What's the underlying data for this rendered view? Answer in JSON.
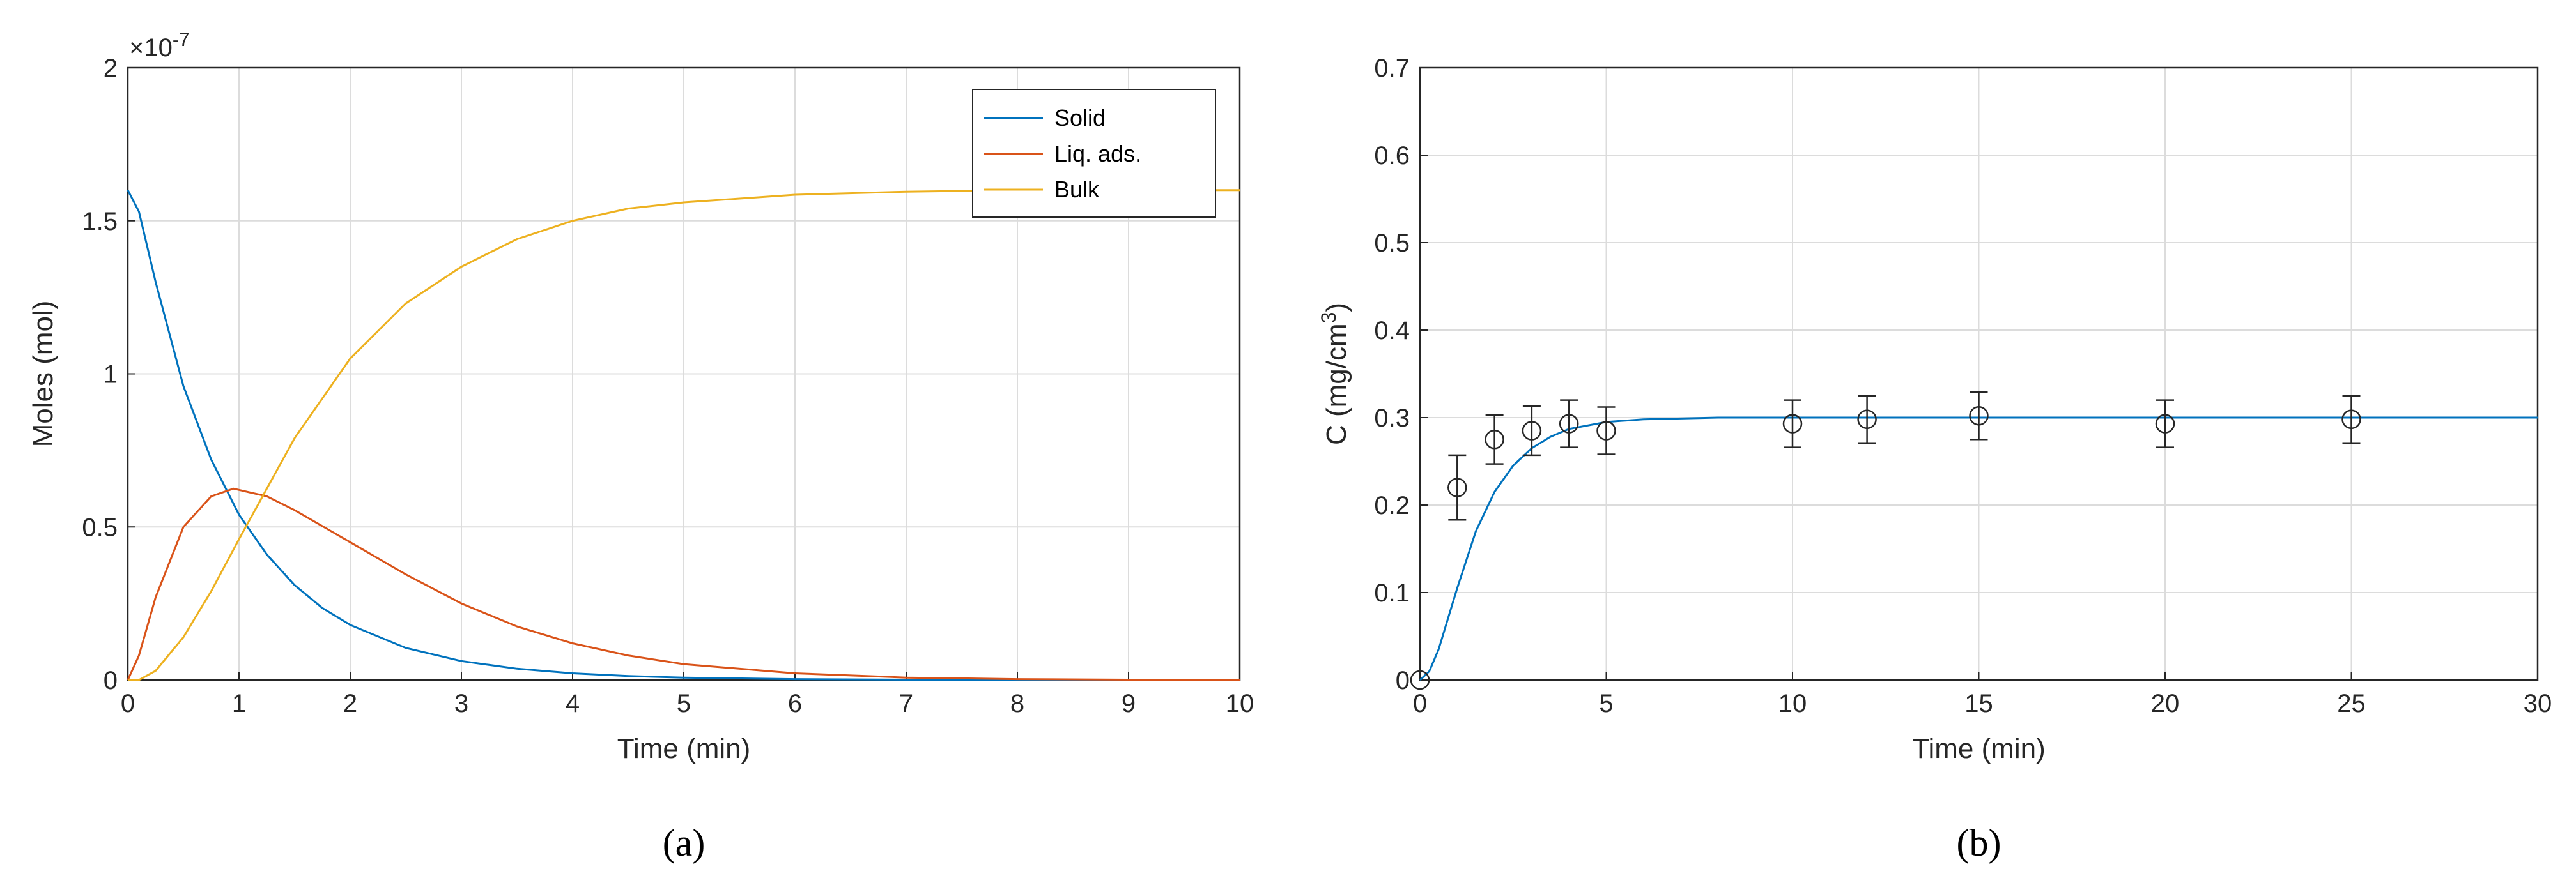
{
  "chart_data": [
    {
      "panel_label": "(a)",
      "panel_letter": "a",
      "type": "line",
      "xlabel": "Time (min)",
      "ylabel": "Moles (mol)",
      "y_exponent": "×10",
      "y_exponent_power": "-7",
      "xlim": [
        0,
        10
      ],
      "ylim": [
        0,
        2
      ],
      "xticks": [
        "0",
        "1",
        "2",
        "3",
        "4",
        "5",
        "6",
        "7",
        "8",
        "9",
        "10"
      ],
      "yticks": [
        "0",
        "0.5",
        "1",
        "1.5",
        "2"
      ],
      "grid": true,
      "legend_position": "top-right",
      "series": [
        {
          "name": "Solid",
          "color": "#0072BD",
          "x": [
            0,
            0.1,
            0.25,
            0.5,
            0.75,
            1,
            1.25,
            1.5,
            1.75,
            2,
            2.5,
            3,
            3.5,
            4,
            4.5,
            5,
            6,
            7,
            8,
            9,
            10
          ],
          "y": [
            1.6,
            1.53,
            1.3,
            0.96,
            0.72,
            0.54,
            0.41,
            0.31,
            0.235,
            0.18,
            0.105,
            0.062,
            0.037,
            0.022,
            0.013,
            0.008,
            0.003,
            0.001,
            0,
            0,
            0
          ]
        },
        {
          "name": "Liq. ads.",
          "color": "#D95319",
          "x": [
            0,
            0.1,
            0.25,
            0.5,
            0.75,
            0.95,
            1.25,
            1.5,
            2,
            2.5,
            3,
            3.5,
            4,
            4.5,
            5,
            6,
            7,
            8,
            9,
            10
          ],
          "y": [
            0,
            0.08,
            0.27,
            0.5,
            0.6,
            0.625,
            0.6,
            0.555,
            0.45,
            0.345,
            0.25,
            0.175,
            0.12,
            0.08,
            0.052,
            0.022,
            0.008,
            0.003,
            0.001,
            0
          ]
        },
        {
          "name": "Bulk",
          "color": "#EDB120",
          "x": [
            0,
            0.1,
            0.25,
            0.5,
            0.75,
            1,
            1.5,
            2,
            2.5,
            3,
            3.5,
            4,
            4.5,
            5,
            6,
            7,
            8,
            9,
            10
          ],
          "y": [
            0,
            0,
            0.03,
            0.14,
            0.29,
            0.46,
            0.79,
            1.05,
            1.23,
            1.35,
            1.44,
            1.5,
            1.54,
            1.56,
            1.585,
            1.595,
            1.6,
            1.6,
            1.6
          ]
        }
      ]
    },
    {
      "panel_label": "(b)",
      "panel_letter": "b",
      "type": "scatter",
      "xlabel": "Time (min)",
      "ylabel": "C (mg/cm",
      "ylabel_sup": "3",
      "ylabel_end": ")",
      "xlim": [
        0,
        30
      ],
      "ylim": [
        0,
        0.7
      ],
      "xticks": [
        "0",
        "5",
        "10",
        "15",
        "20",
        "25",
        "30"
      ],
      "yticks": [
        "0",
        "0.1",
        "0.2",
        "0.3",
        "0.4",
        "0.5",
        "0.6",
        "0.7"
      ],
      "grid": true,
      "model_curve": {
        "color": "#0072BD",
        "x": [
          0,
          0.25,
          0.5,
          0.75,
          1,
          1.5,
          2,
          2.5,
          3,
          3.5,
          4,
          5,
          6,
          7,
          8,
          10,
          15,
          20,
          25,
          30
        ],
        "y": [
          0,
          0.01,
          0.035,
          0.07,
          0.105,
          0.17,
          0.215,
          0.245,
          0.265,
          0.278,
          0.287,
          0.295,
          0.298,
          0.299,
          0.3,
          0.3,
          0.3,
          0.3,
          0.3,
          0.3
        ]
      },
      "measurements": {
        "color": "#262626",
        "x": [
          0,
          1,
          2,
          3,
          4,
          5,
          10,
          12,
          15,
          20,
          25
        ],
        "y": [
          0,
          0.22,
          0.275,
          0.285,
          0.293,
          0.285,
          0.293,
          0.298,
          0.302,
          0.293,
          0.298
        ],
        "error": [
          0,
          0.037,
          0.028,
          0.028,
          0.027,
          0.027,
          0.027,
          0.027,
          0.027,
          0.027,
          0.027
        ]
      }
    }
  ]
}
